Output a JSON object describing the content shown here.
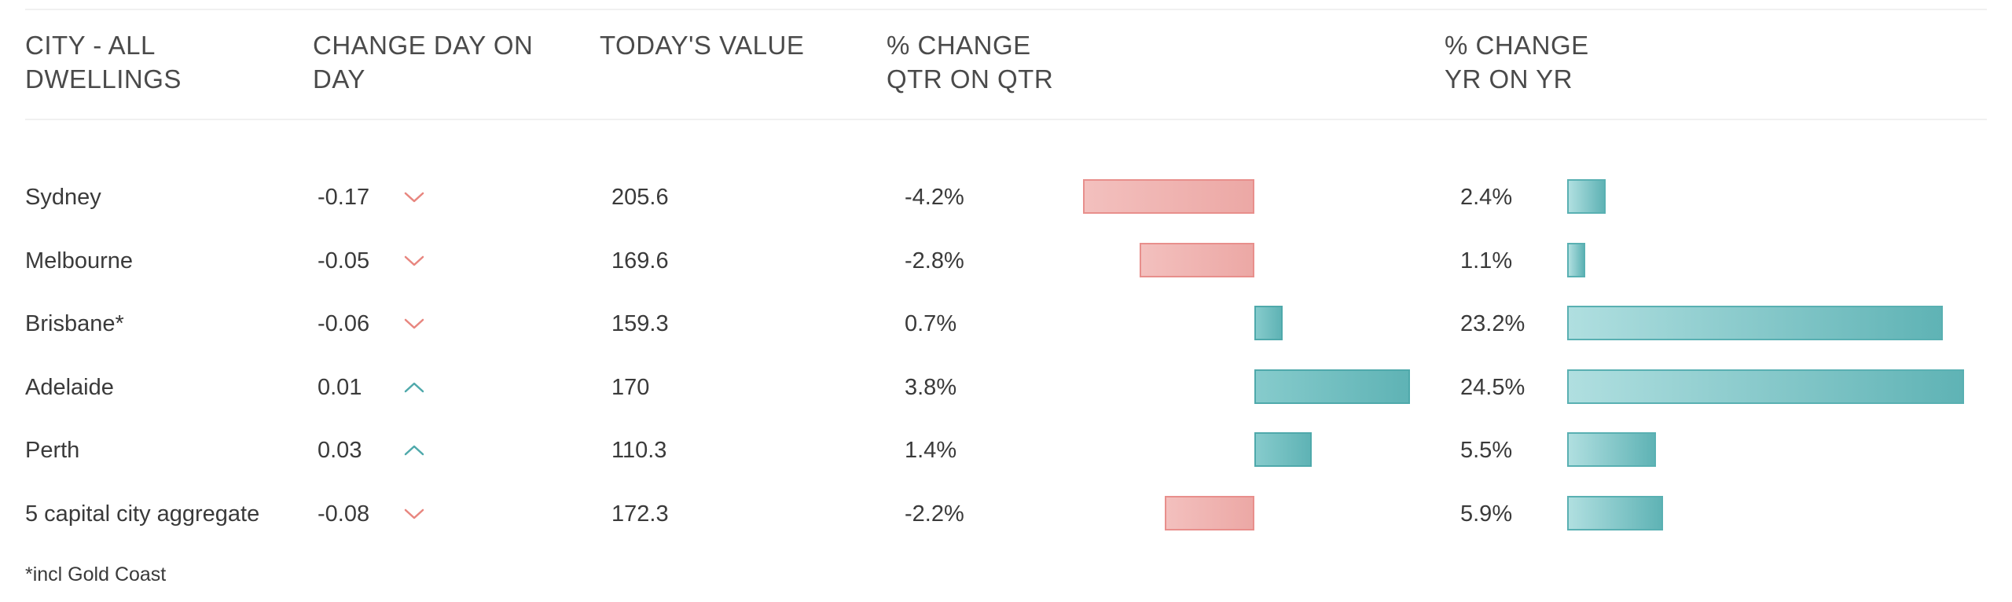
{
  "headers": {
    "city": "CITY - ALL\nDWELLINGS",
    "change": "CHANGE DAY ON\nDAY",
    "value": "TODAY'S VALUE",
    "qtr": "% CHANGE\nQTR ON QTR",
    "yr": "% CHANGE\nYR ON YR"
  },
  "colors": {
    "negative": "#eca8a5",
    "positive": "#5fb3b5",
    "arrow_down": "#e8867f",
    "arrow_up": "#4fa9ab"
  },
  "rows": [
    {
      "city": "Sydney",
      "change": "-0.17",
      "direction": "down",
      "value": "205.6",
      "qtr": "-4.2%",
      "qtr_num": -4.2,
      "yr": "2.4%",
      "yr_num": 2.4
    },
    {
      "city": "Melbourne",
      "change": "-0.05",
      "direction": "down",
      "value": "169.6",
      "qtr": "-2.8%",
      "qtr_num": -2.8,
      "yr": "1.1%",
      "yr_num": 1.1
    },
    {
      "city": "Brisbane*",
      "change": "-0.06",
      "direction": "down",
      "value": "159.3",
      "qtr": "0.7%",
      "qtr_num": 0.7,
      "yr": "23.2%",
      "yr_num": 23.2
    },
    {
      "city": "Adelaide",
      "change": "0.01",
      "direction": "up",
      "value": "170",
      "qtr": "3.8%",
      "qtr_num": 3.8,
      "yr": "24.5%",
      "yr_num": 24.5
    },
    {
      "city": "Perth",
      "change": "0.03",
      "direction": "up",
      "value": "110.3",
      "qtr": "1.4%",
      "qtr_num": 1.4,
      "yr": "5.5%",
      "yr_num": 5.5
    },
    {
      "city": "5 capital city aggregate",
      "change": "-0.08",
      "direction": "down",
      "value": "172.3",
      "qtr": "-2.2%",
      "qtr_num": -2.2,
      "yr": "5.9%",
      "yr_num": 5.9
    }
  ],
  "footnote": "*incl Gold Coast"
}
